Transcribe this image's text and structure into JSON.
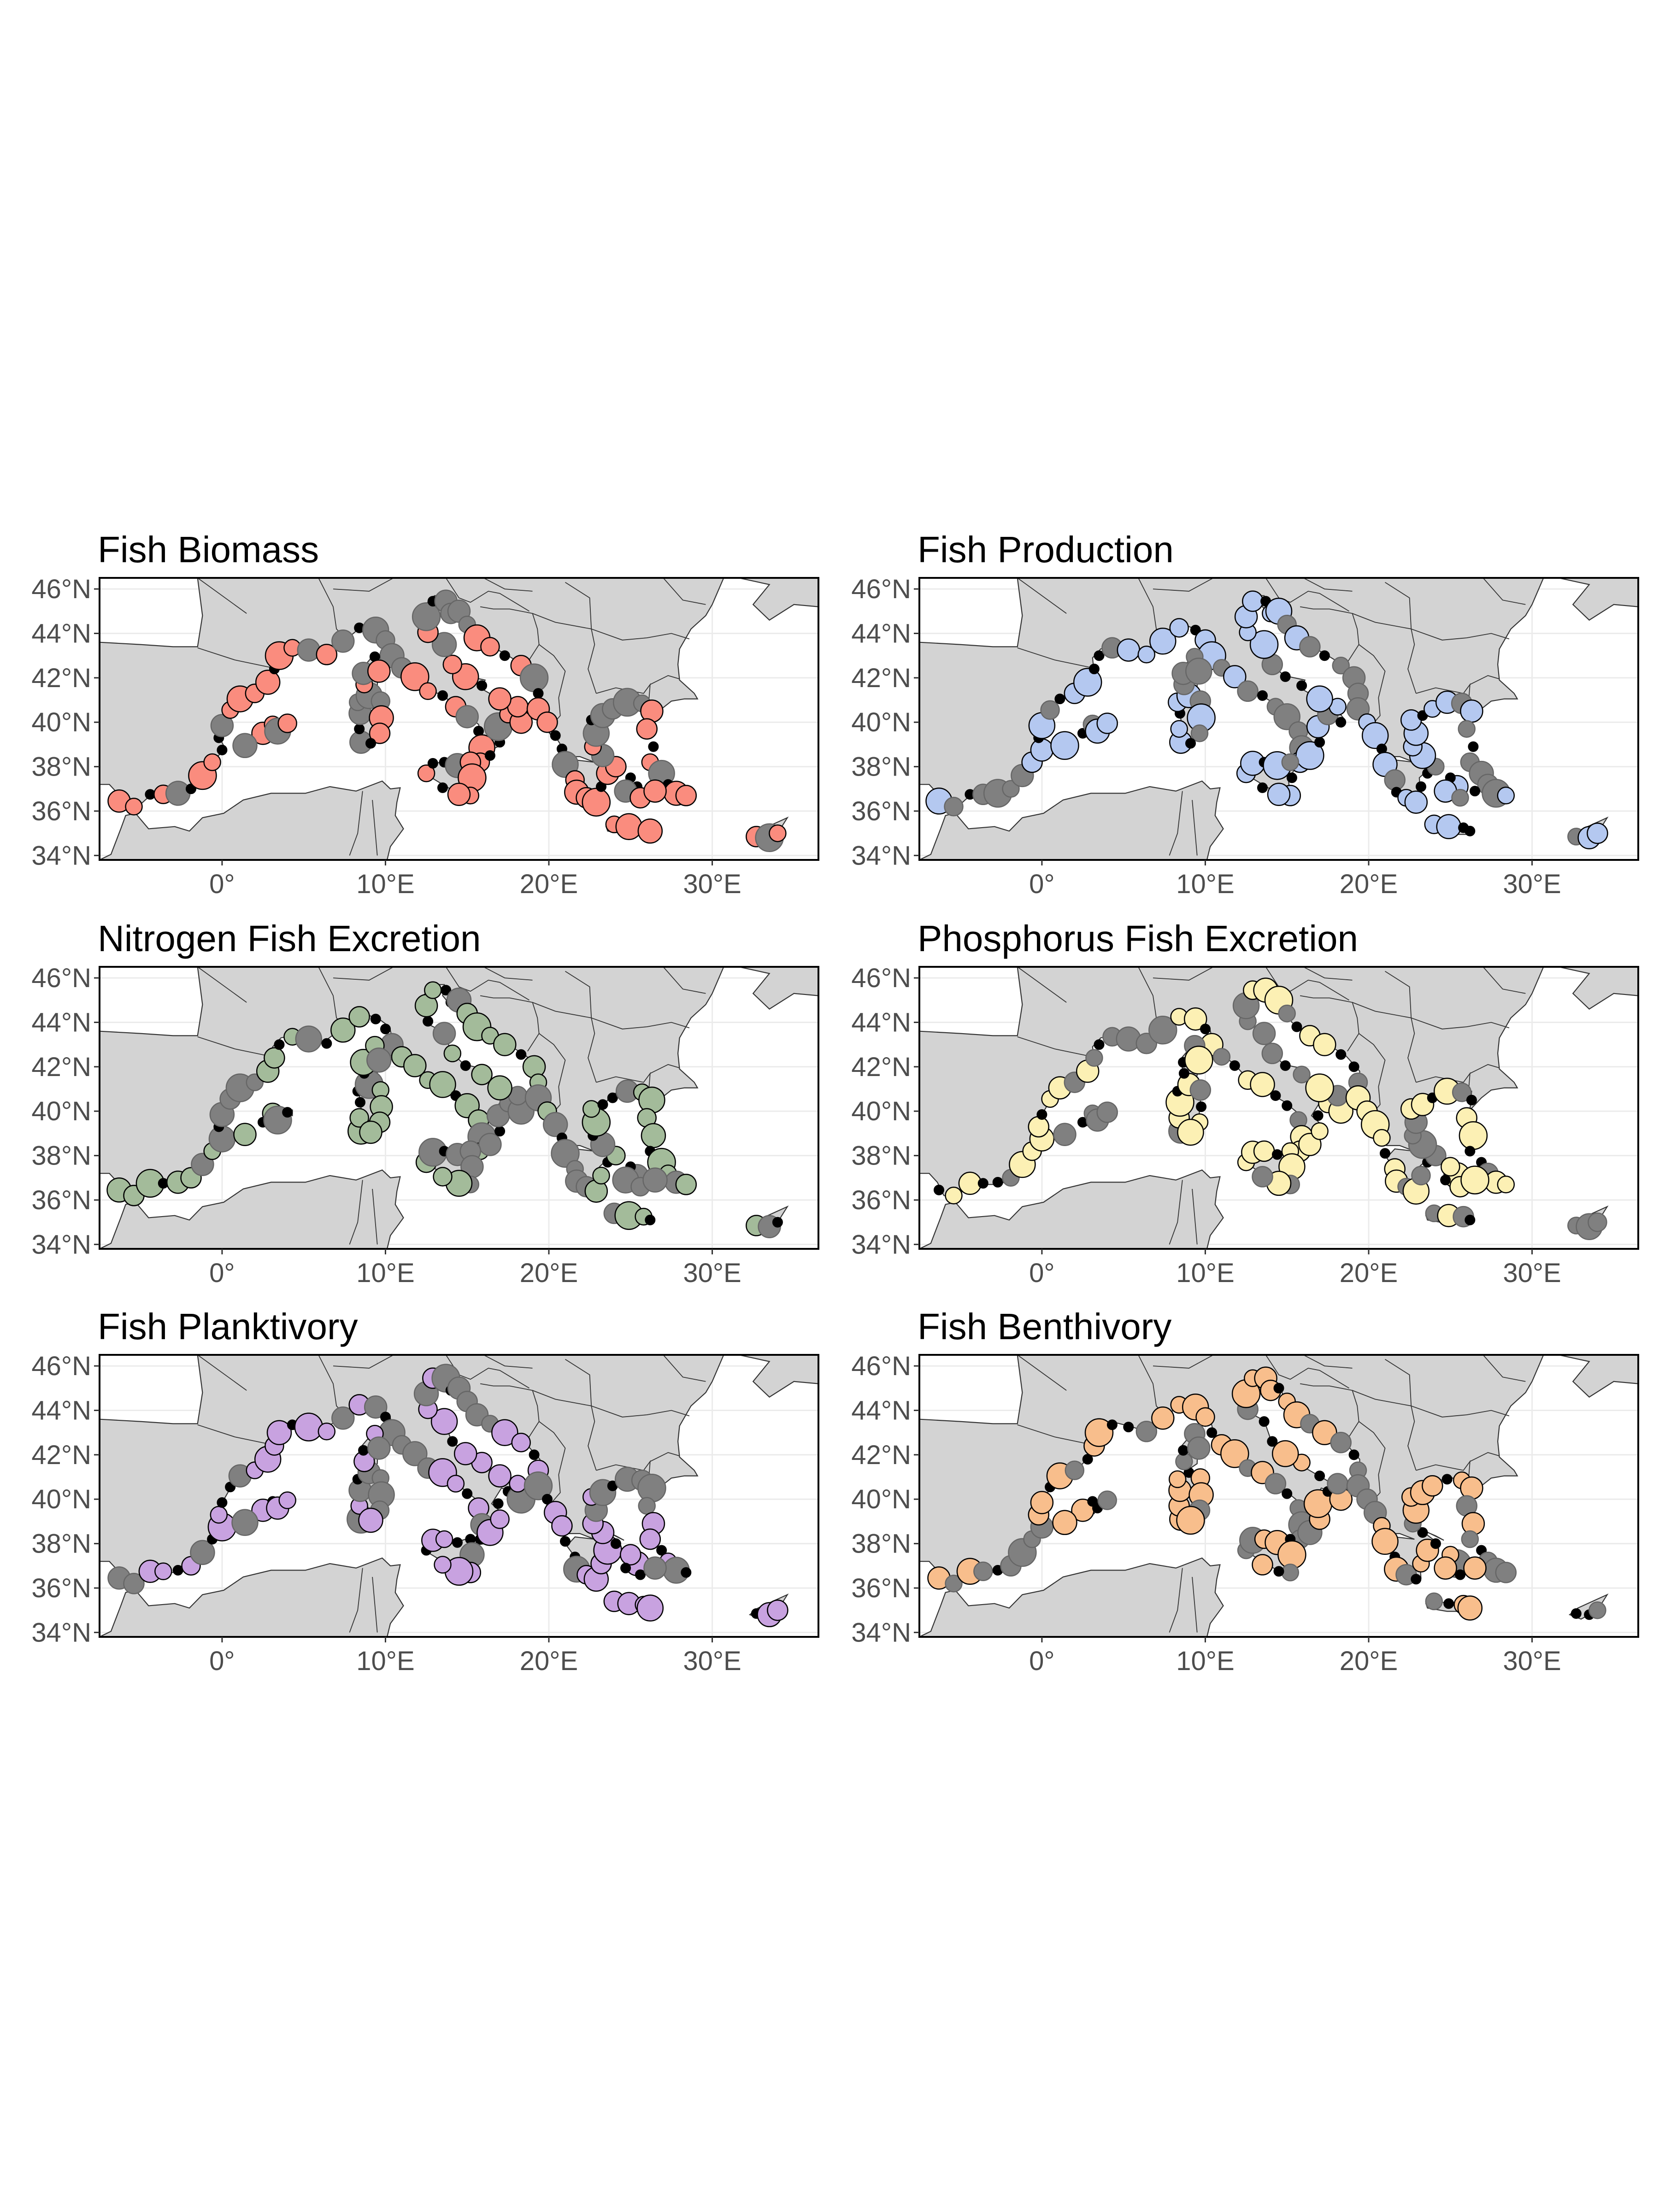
{
  "figure": {
    "colors": {
      "sea": "#ffffff",
      "land": "#d3d3d3",
      "border": "#333333",
      "grid": "#ebebeb",
      "frame": "#000000",
      "low_point": "#000000",
      "mid_point": "#808080"
    },
    "axes": {
      "lon_range": [
        -7.5,
        36.5
      ],
      "lat_range": [
        33.8,
        46.5
      ],
      "x_ticks": [
        {
          "value": 0,
          "label": "0°"
        },
        {
          "value": 10,
          "label": "10°E"
        },
        {
          "value": 20,
          "label": "20°E"
        },
        {
          "value": 30,
          "label": "30°E"
        }
      ],
      "y_ticks": [
        {
          "value": 34,
          "label": "34°N"
        },
        {
          "value": 36,
          "label": "36°N"
        },
        {
          "value": 38,
          "label": "38°N"
        },
        {
          "value": 40,
          "label": "40°N"
        },
        {
          "value": 42,
          "label": "42°N"
        },
        {
          "value": 44,
          "label": "44°N"
        },
        {
          "value": 46,
          "label": "46°N"
        }
      ]
    },
    "panels": [
      {
        "title": "Fish Biomass",
        "highlight_color": "#fa8c7e"
      },
      {
        "title": "Fish Production",
        "highlight_color": "#b4c8f0"
      },
      {
        "title": "Nitrogen Fish Excretion",
        "highlight_color": "#a3bb9a"
      },
      {
        "title": "Phosphorus Fish Excretion",
        "highlight_color": "#fcf0b4"
      },
      {
        "title": "Fish Planktivory",
        "highlight_color": "#c8a2e0"
      },
      {
        "title": "Fish Benthivory",
        "highlight_color": "#f8be8c"
      }
    ]
  }
}
